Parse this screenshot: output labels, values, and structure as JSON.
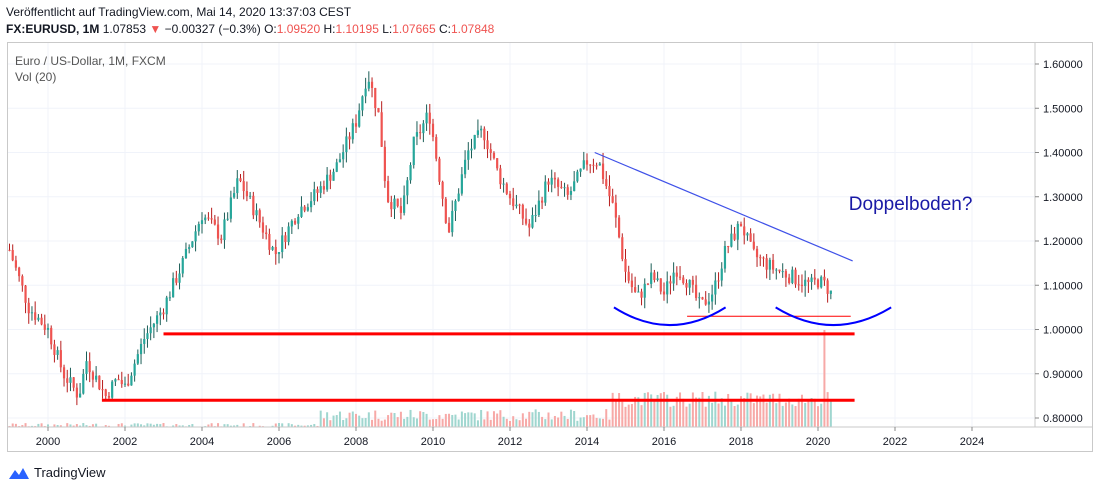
{
  "header": {
    "published": "Veröffentlicht auf TradingView.com, Mai 14, 2020 13:37:03 CEST",
    "symbol": "FX:EURUSD, 1M",
    "last": "1.07853",
    "change_arrow": "▼",
    "change": "−0.00327 (−0.3%)",
    "o_label": "O:",
    "o_value": "1.09520",
    "h_label": "H:",
    "h_value": "1.10195",
    "l_label": "L:",
    "l_value": "1.07665",
    "c_label": "C:",
    "c_value": "1.07848"
  },
  "chart_labels": {
    "symbol_name": "Euro / US-Dollar, 1M, FXCM",
    "volume_label": "Vol (20)",
    "annotation": "Doppelboden?"
  },
  "footer": {
    "brand": "TradingView",
    "logo_icon": "tradingview-logo-icon"
  },
  "colors": {
    "up": "#26a69a",
    "down": "#ef5350",
    "up_wick": "#1b5e57",
    "down_wick": "#b71c1c",
    "trendline": "#3f51e8",
    "support": "#ff0000",
    "arc": "#0000ff",
    "annotation": "#1a1aa6"
  },
  "chart_data": {
    "type": "candlestick",
    "title": "Euro / US-Dollar, 1M, FXCM",
    "ylim": [
      0.77,
      1.655
    ],
    "xlim": [
      1999.0,
      2025.6
    ],
    "y_ticks": [
      "1.60000",
      "1.50000",
      "1.40000",
      "1.30000",
      "1.20000",
      "1.10000",
      "1.00000",
      "0.90000",
      "0.80000"
    ],
    "x_ticks": [
      "2000",
      "2002",
      "2004",
      "2006",
      "2008",
      "2010",
      "2012",
      "2014",
      "2016",
      "2018",
      "2020",
      "2022",
      "2024"
    ],
    "price_path": [
      [
        1999.0,
        1.18
      ],
      [
        1999.5,
        1.05
      ],
      [
        2000.0,
        1.0
      ],
      [
        2000.4,
        0.9
      ],
      [
        2000.8,
        0.85
      ],
      [
        2001.0,
        0.93
      ],
      [
        2001.5,
        0.85
      ],
      [
        2001.8,
        0.89
      ],
      [
        2002.0,
        0.87
      ],
      [
        2002.5,
        0.98
      ],
      [
        2003.0,
        1.05
      ],
      [
        2003.5,
        1.15
      ],
      [
        2004.0,
        1.26
      ],
      [
        2004.5,
        1.21
      ],
      [
        2004.95,
        1.34
      ],
      [
        2005.3,
        1.28
      ],
      [
        2005.9,
        1.17
      ],
      [
        2006.5,
        1.27
      ],
      [
        2007.0,
        1.31
      ],
      [
        2007.5,
        1.37
      ],
      [
        2008.0,
        1.47
      ],
      [
        2008.3,
        1.58
      ],
      [
        2008.6,
        1.48
      ],
      [
        2008.8,
        1.3
      ],
      [
        2009.2,
        1.26
      ],
      [
        2009.5,
        1.42
      ],
      [
        2009.9,
        1.49
      ],
      [
        2010.4,
        1.22
      ],
      [
        2010.9,
        1.4
      ],
      [
        2011.3,
        1.45
      ],
      [
        2011.7,
        1.35
      ],
      [
        2012.0,
        1.3
      ],
      [
        2012.5,
        1.23
      ],
      [
        2013.0,
        1.34
      ],
      [
        2013.5,
        1.3
      ],
      [
        2014.0,
        1.38
      ],
      [
        2014.3,
        1.38
      ],
      [
        2014.7,
        1.27
      ],
      [
        2015.0,
        1.13
      ],
      [
        2015.3,
        1.07
      ],
      [
        2015.7,
        1.12
      ],
      [
        2016.0,
        1.08
      ],
      [
        2016.3,
        1.14
      ],
      [
        2016.6,
        1.11
      ],
      [
        2016.95,
        1.05
      ],
      [
        2017.3,
        1.09
      ],
      [
        2017.6,
        1.18
      ],
      [
        2018.0,
        1.24
      ],
      [
        2018.3,
        1.17
      ],
      [
        2018.8,
        1.14
      ],
      [
        2019.3,
        1.12
      ],
      [
        2019.8,
        1.1
      ],
      [
        2020.0,
        1.11
      ],
      [
        2020.2,
        1.1
      ],
      [
        2020.35,
        1.08
      ]
    ],
    "series": [
      {
        "name": "volume",
        "type": "bar",
        "note": "volume histogram at chart bottom"
      }
    ],
    "annotations": [
      {
        "type": "trendline",
        "from": [
          2014.2,
          1.4
        ],
        "to": [
          2020.9,
          1.155
        ],
        "color": "#3f51e8"
      },
      {
        "type": "hline",
        "x_from": 2003.0,
        "x_to": 2020.95,
        "y": 0.99,
        "color": "#ff0000",
        "width": "thick"
      },
      {
        "type": "hline",
        "x_from": 2001.4,
        "x_to": 2020.95,
        "y": 0.84,
        "color": "#ff0000",
        "width": "thick"
      },
      {
        "type": "hline",
        "x_from": 2016.6,
        "x_to": 2020.85,
        "y": 1.03,
        "color": "#ff0000",
        "width": "thin"
      },
      {
        "type": "arc",
        "x_from": 2014.7,
        "x_to": 2017.6,
        "y_top": 1.05,
        "y_bottom": 1.01,
        "color": "#0000ff"
      },
      {
        "type": "arc",
        "x_from": 2018.9,
        "x_to": 2021.9,
        "y_top": 1.05,
        "y_bottom": 1.01,
        "color": "#0000ff"
      },
      {
        "type": "text",
        "text": "Doppelboden?",
        "x": 2020.8,
        "y": 1.27
      }
    ]
  }
}
